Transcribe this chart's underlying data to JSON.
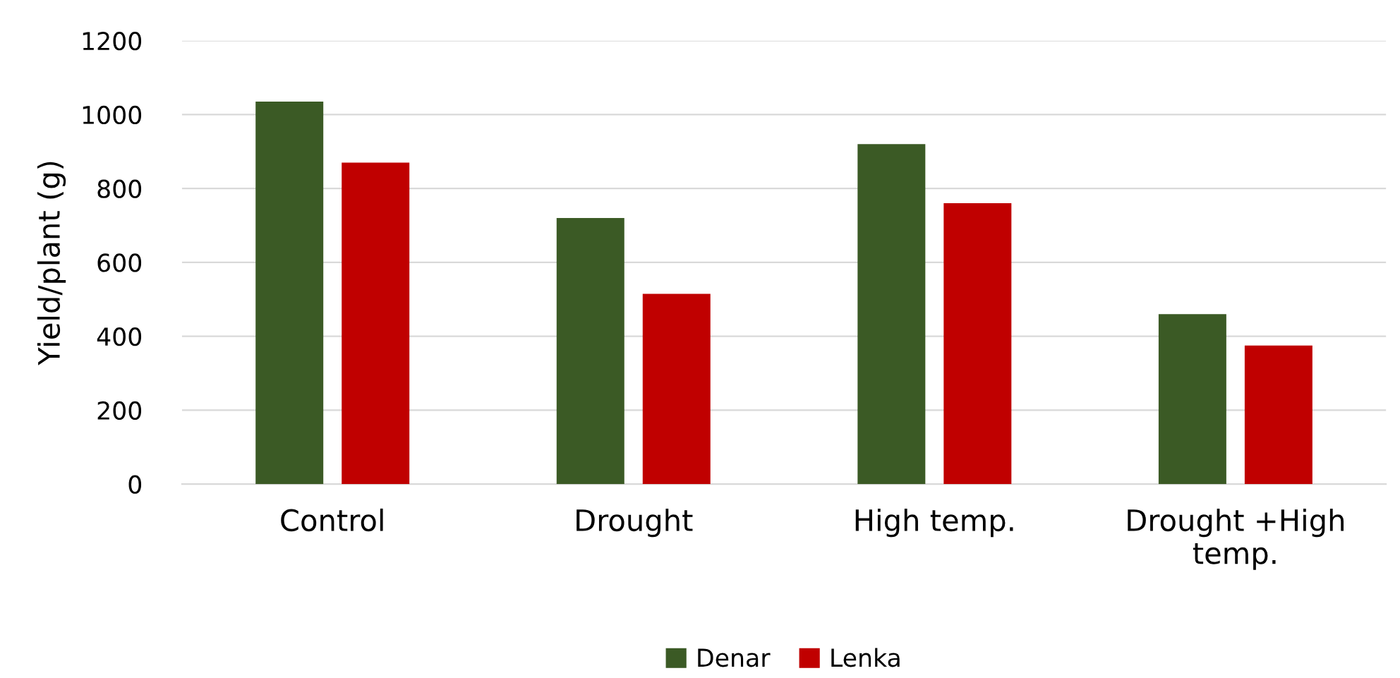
{
  "chart_data": {
    "type": "bar",
    "ylabel": "Yield/plant (g)",
    "categories": [
      "Control",
      "Drought",
      "High temp.",
      "Drought +High temp."
    ],
    "series": [
      {
        "name": "Denar",
        "color": "#3b5a25",
        "values": [
          1035,
          720,
          920,
          460
        ]
      },
      {
        "name": "Lenka",
        "color": "#c00000",
        "values": [
          870,
          515,
          760,
          375
        ]
      }
    ],
    "ylim": [
      0,
      1200
    ],
    "yticks": [
      0,
      200,
      400,
      600,
      800,
      1000,
      1200
    ],
    "grid": "y",
    "legend": "bottom"
  }
}
